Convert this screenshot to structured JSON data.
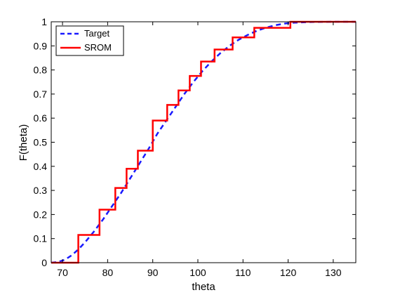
{
  "chart_data": {
    "type": "line",
    "title": "",
    "xlabel": "theta",
    "ylabel": "F(theta)",
    "xlim": [
      67.5,
      135
    ],
    "ylim": [
      0,
      1
    ],
    "xticks": [
      70,
      80,
      90,
      100,
      110,
      120,
      130
    ],
    "yticks": [
      0,
      0.1,
      0.2,
      0.3,
      0.4,
      0.5,
      0.6,
      0.7,
      0.8,
      0.9,
      1
    ],
    "grid": false,
    "legend_position": "top-left",
    "series": [
      {
        "name": "Target",
        "style": "dashed",
        "color": "#1a1aff",
        "x": [
          67.5,
          69,
          70.5,
          72,
          73.5,
          75,
          77,
          79,
          81,
          83,
          85,
          87,
          89,
          91,
          93,
          95,
          97,
          99,
          101,
          103,
          105,
          107,
          109,
          111,
          113,
          115,
          117,
          119,
          121,
          125,
          130,
          135
        ],
        "y": [
          0,
          0.003,
          0.012,
          0.03,
          0.055,
          0.085,
          0.13,
          0.18,
          0.235,
          0.29,
          0.35,
          0.41,
          0.47,
          0.535,
          0.59,
          0.645,
          0.7,
          0.75,
          0.795,
          0.835,
          0.87,
          0.9,
          0.925,
          0.945,
          0.962,
          0.975,
          0.985,
          0.992,
          0.996,
          0.999,
          1,
          1
        ]
      },
      {
        "name": "SROM",
        "style": "step",
        "color": "#ff0000",
        "steps": [
          {
            "x": 67.5,
            "y": 0
          },
          {
            "x": 73.5,
            "y": 0.115
          },
          {
            "x": 78.2,
            "y": 0.22
          },
          {
            "x": 81.7,
            "y": 0.31
          },
          {
            "x": 84.2,
            "y": 0.39
          },
          {
            "x": 86.7,
            "y": 0.465
          },
          {
            "x": 90.0,
            "y": 0.59
          },
          {
            "x": 93.2,
            "y": 0.655
          },
          {
            "x": 95.7,
            "y": 0.715
          },
          {
            "x": 98.2,
            "y": 0.775
          },
          {
            "x": 100.7,
            "y": 0.835
          },
          {
            "x": 103.7,
            "y": 0.885
          },
          {
            "x": 107.7,
            "y": 0.935
          },
          {
            "x": 112.5,
            "y": 0.975
          },
          {
            "x": 120.5,
            "y": 1.0
          }
        ],
        "x_end": 135
      }
    ]
  }
}
